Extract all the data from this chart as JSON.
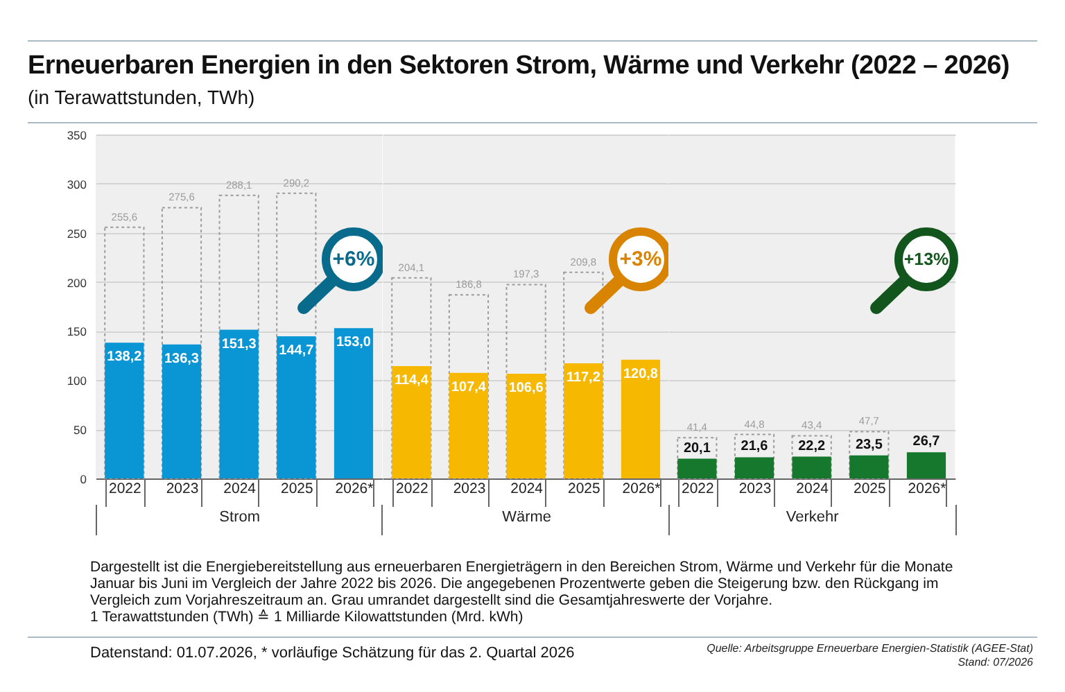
{
  "chart_data": [
    {
      "type": "bar",
      "title": "Erneuerbaren Energien in den Sektoren Strom, Wärme und Verkehr (2022 – 2026)",
      "subtitle": "(in Terawattstunden, TWh)",
      "categories": [
        "2022",
        "2023",
        "2024",
        "2025",
        "2026*"
      ],
      "xlabel": "Strom",
      "series": [
        {
          "color": "#9b9b9b",
          "line_style": "dashed",
          "values": [
            255.6,
            275.6,
            288.1,
            290.2,
            null
          ],
          "value_labels": [
            "255,6",
            "275,6",
            "288,1",
            "290,2",
            null
          ]
        },
        {
          "color": "#0a95d4",
          "values": [
            138.2,
            136.3,
            151.3,
            144.7,
            153.0
          ],
          "value_labels": [
            "138,2",
            "136,3",
            "151,3",
            "144,7",
            "153,0"
          ]
        }
      ],
      "ylim": [
        0,
        350
      ],
      "yticks": [
        0,
        50,
        100,
        150,
        200,
        250,
        300,
        350
      ],
      "grid": "y",
      "annotations": [
        {
          "text": "+6%",
          "x": "2026*",
          "y": 223
        },
        "Dargestellt ist die Energiebereitstellung aus erneuerbaren Energieträgern in den Bereichen Strom, Wärme und Verkehr für die Monate Januar bis Juni im Vergleich der Jahre 2022 bis 2026. Die angegebenen Prozentwerte geben die Steigerung bzw. den Rückgang im Vergleich zum Vorjahreszeitraum an. Grau umrandet dargestellt sind die Gesamtjahreswerte der Vorjahre.",
        "1 Terawattstunden (TWh) ≙ 1 Milliarde Kilowattstunden (Mrd. kWh)",
        "Datenstand: 01.07.2026, * vorläufige Schätzung für das 2. Quartal 2026",
        "Quelle: Arbeitsgruppe Erneuerbare Energien-Statistik (AGEE-Stat)",
        "Stand: 07/2026"
      ]
    },
    {
      "type": "bar",
      "categories": [
        "2022",
        "2023",
        "2024",
        "2025",
        "2026*"
      ],
      "xlabel": "Wärme",
      "series": [
        {
          "color": "#9b9b9b",
          "line_style": "dashed",
          "values": [
            204.1,
            186.8,
            197.3,
            209.8,
            null
          ],
          "value_labels": [
            "204,1",
            "186,8",
            "197,3",
            "209,8",
            null
          ]
        },
        {
          "color": "#f6b800",
          "values": [
            114.4,
            107.4,
            106.6,
            117.2,
            120.8
          ],
          "value_labels": [
            "114,4",
            "107,4",
            "106,6",
            "117,2",
            "120,8"
          ]
        }
      ],
      "ylim": [
        0,
        350
      ],
      "yticks": [
        0,
        50,
        100,
        150,
        200,
        250,
        300,
        350
      ],
      "grid": "y",
      "tick_labels": "x",
      "annotations": [
        {
          "text": "+3%",
          "x": "2026*",
          "y": 223
        }
      ]
    },
    {
      "type": "bar",
      "categories": [
        "2022",
        "2023",
        "2024",
        "2025",
        "2026*"
      ],
      "xlabel": "Verkehr",
      "series": [
        {
          "color": "#9b9b9b",
          "line_style": "dashed",
          "values": [
            41.4,
            44.8,
            43.4,
            47.7,
            null
          ],
          "value_labels": [
            "41,4",
            "44,8",
            "43,4",
            "47,7",
            null
          ]
        },
        {
          "color": "#16782c",
          "values": [
            20.1,
            21.6,
            22.2,
            23.5,
            26.7
          ],
          "value_labels": [
            "20,1",
            "21,6",
            "22,2",
            "23,5",
            "26,7"
          ]
        }
      ],
      "ylim": [
        0,
        350
      ],
      "yticks": [
        0,
        50,
        100,
        150,
        200,
        250,
        300,
        350
      ],
      "grid": "y",
      "tick_labels": "x",
      "annotations": [
        {
          "text": "+13%",
          "x": "2026*",
          "y": 223
        }
      ]
    }
  ]
}
